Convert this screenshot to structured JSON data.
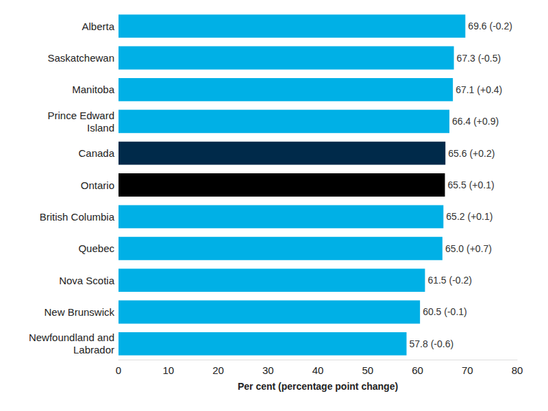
{
  "chart_data": {
    "type": "bar",
    "orientation": "horizontal",
    "categories": [
      "Alberta",
      "Saskatchewan",
      "Manitoba",
      "Prince Edward\nIsland",
      "Canada",
      "Ontario",
      "British Columbia",
      "Quebec",
      "Nova Scotia",
      "New Brunswick",
      "Newfoundland and\nLabrador"
    ],
    "values": [
      69.6,
      67.3,
      67.1,
      66.4,
      65.6,
      65.5,
      65.2,
      65.0,
      61.5,
      60.5,
      57.8
    ],
    "value_labels": [
      "69.6 (-0.2)",
      "67.3 (-0.5)",
      "67.1 (+0.4)",
      "66.4 (+0.9)",
      "65.6 (+0.2)",
      "65.5 (+0.1)",
      "65.2 (+0.1)",
      "65.0 (+0.7)",
      "61.5 (-0.2)",
      "60.5 (-0.1)",
      "57.8 (-0.6)"
    ],
    "colors": [
      "#00b0e6",
      "#00b0e6",
      "#00b0e6",
      "#00b0e6",
      "#002a4a",
      "#000000",
      "#00b0e6",
      "#00b0e6",
      "#00b0e6",
      "#00b0e6",
      "#00b0e6"
    ],
    "x_label": "Per cent (percentage point change)",
    "xlim": [
      0,
      80
    ],
    "xticks": [
      0,
      10,
      20,
      30,
      40,
      50,
      60,
      70,
      80
    ],
    "data_labels": true,
    "grid": false
  }
}
